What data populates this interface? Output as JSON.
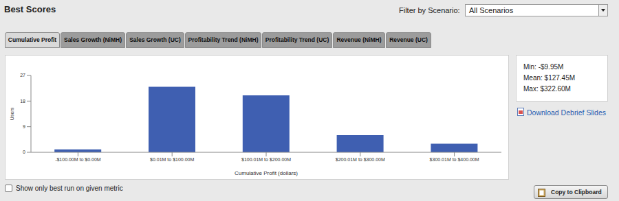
{
  "header": {
    "title": "Best Scores",
    "filter_label": "Filter by Scenario:",
    "filter_value": "All Scenarios"
  },
  "tabs": [
    {
      "label": "Cumulative Profit",
      "active": true
    },
    {
      "label": "Sales Growth (NiMH)",
      "active": false
    },
    {
      "label": "Sales Growth (UC)",
      "active": false
    },
    {
      "label": "Profitability Trend (NiMH)",
      "active": false
    },
    {
      "label": "Profitability Trend (UC)",
      "active": false
    },
    {
      "label": "Revenue (NiMH)",
      "active": false
    },
    {
      "label": "Revenue (UC)",
      "active": false
    }
  ],
  "chart_data": {
    "type": "bar",
    "x_label": "Cumulative Profit (dollars)",
    "y_label": "Users",
    "categories": [
      "-$100.00M to $0.00M",
      "$0.01M to $100.00M",
      "$100.01M to $200.00M",
      "$200.01M to $300.00M",
      "$300.01M to $400.00M"
    ],
    "values": [
      1,
      23,
      20,
      6,
      3
    ],
    "color": "#3f5fb1",
    "ylim": [
      0,
      27
    ],
    "yticks": [
      0,
      9,
      18,
      27
    ],
    "grid": false
  },
  "stats": [
    "Min: -$9.95M",
    "Mean: $127.45M",
    "Max: $322.60M"
  ],
  "download_link": "Download Debrief Slides",
  "checkbox_label": "Show only best run on given metric",
  "button_label": "Copy to Clipboard"
}
